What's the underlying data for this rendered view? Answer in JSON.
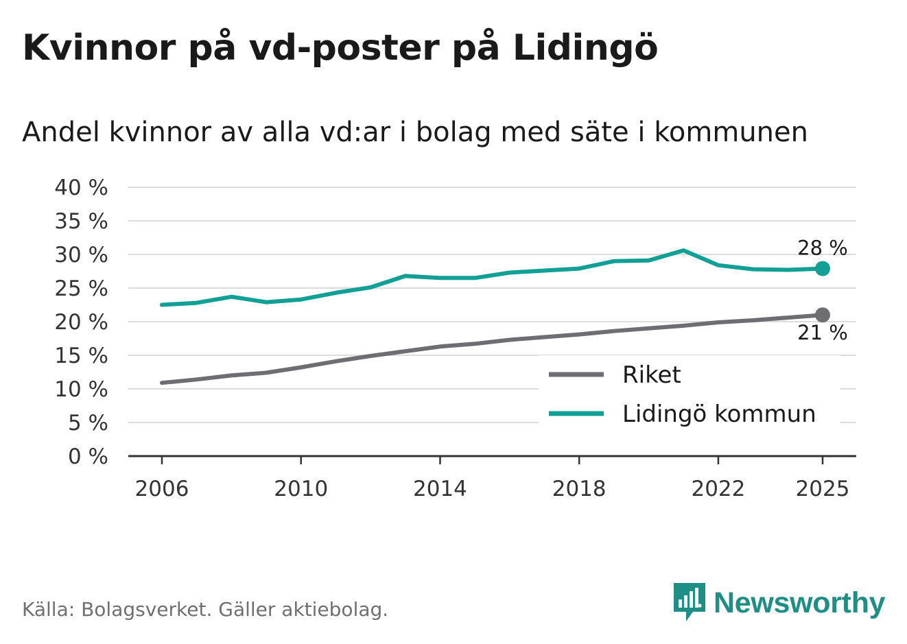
{
  "title": "Kvinnor på vd-poster på Lidingö",
  "subtitle": "Andel kvinnor av alla vd:ar i bolag med säte i kommunen",
  "source": "Källa: Bolagsverket. Gäller aktiebolag.",
  "brand": "Newsworthy",
  "colors": {
    "riket": "#6e6d72",
    "lidingo": "#12a096",
    "grid": "#dcdcdc",
    "axis": "#333333",
    "brand": "#1f8f86"
  },
  "chart_data": {
    "type": "line",
    "x": [
      2006,
      2007,
      2008,
      2009,
      2010,
      2011,
      2012,
      2013,
      2014,
      2015,
      2016,
      2017,
      2018,
      2019,
      2020,
      2021,
      2022,
      2023,
      2024,
      2025
    ],
    "xticks": [
      2006,
      2010,
      2014,
      2018,
      2022,
      2025
    ],
    "ylim": [
      0,
      40
    ],
    "yticks": [
      0,
      5,
      10,
      15,
      20,
      25,
      30,
      35,
      40
    ],
    "ytick_labels": [
      "0 %",
      "5 %",
      "10 %",
      "15 %",
      "20 %",
      "25 %",
      "30 %",
      "35 %",
      "40 %"
    ],
    "grid": true,
    "legend_position": "bottom-right",
    "series": [
      {
        "name": "Riket",
        "color_key": "riket",
        "values": [
          10.9,
          11.4,
          12.0,
          12.4,
          13.2,
          14.1,
          14.9,
          15.6,
          16.3,
          16.7,
          17.3,
          17.7,
          18.1,
          18.6,
          19.0,
          19.4,
          19.9,
          20.2,
          20.6,
          21.0
        ],
        "end_label": "21 %",
        "end_label_side": "below"
      },
      {
        "name": "Lidingö kommun",
        "color_key": "lidingo",
        "values": [
          22.5,
          22.8,
          23.7,
          22.9,
          23.3,
          24.3,
          25.1,
          26.8,
          26.5,
          26.5,
          27.3,
          27.6,
          27.9,
          29.0,
          29.1,
          30.6,
          28.4,
          27.8,
          27.7,
          27.9
        ],
        "end_label": "28 %",
        "end_label_side": "above"
      }
    ]
  }
}
